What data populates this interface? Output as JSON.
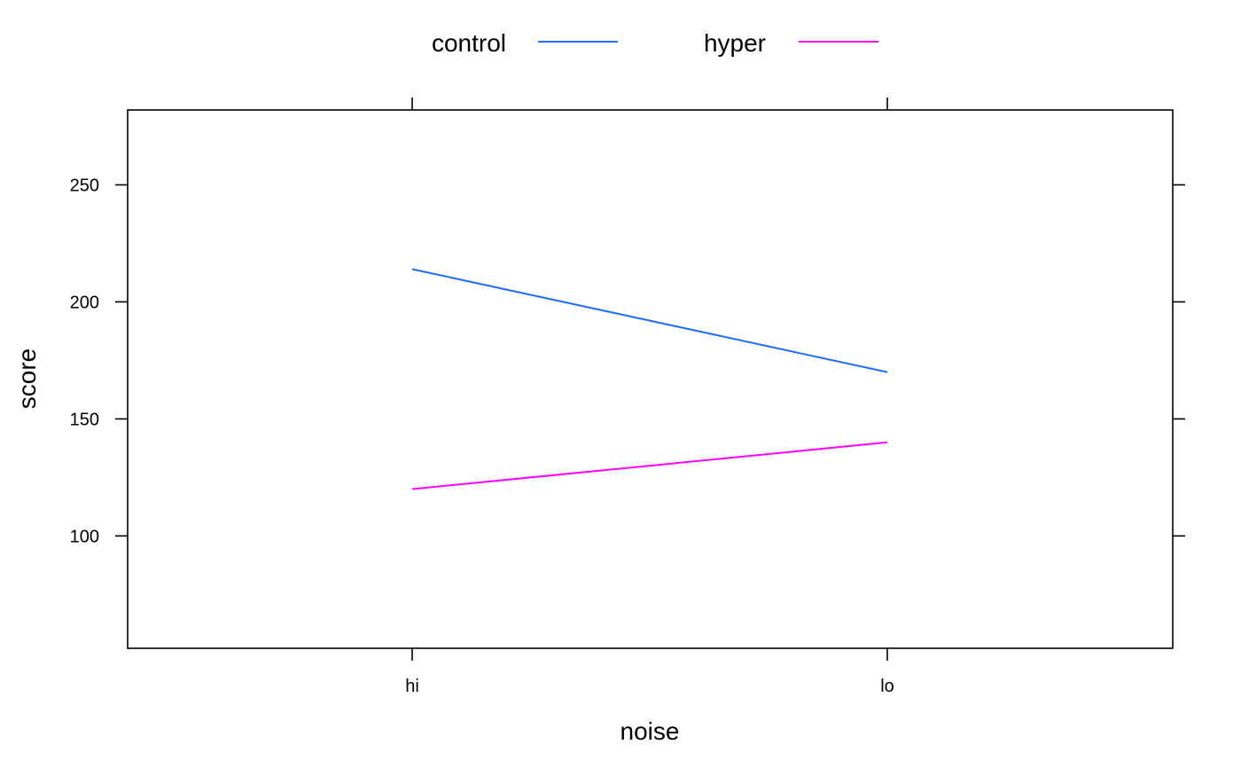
{
  "chart_data": {
    "type": "line",
    "title": "",
    "xlabel": "noise",
    "ylabel": "score",
    "categories": [
      "hi",
      "lo"
    ],
    "ylim": [
      52,
      282
    ],
    "yticks": [
      100,
      150,
      200,
      250
    ],
    "grid": false,
    "legend_position": "top",
    "series": [
      {
        "name": "control",
        "color": "#1F6EFF",
        "values": [
          214,
          170
        ]
      },
      {
        "name": "hyper",
        "color": "#FF00FF",
        "values": [
          120,
          140
        ]
      }
    ]
  }
}
